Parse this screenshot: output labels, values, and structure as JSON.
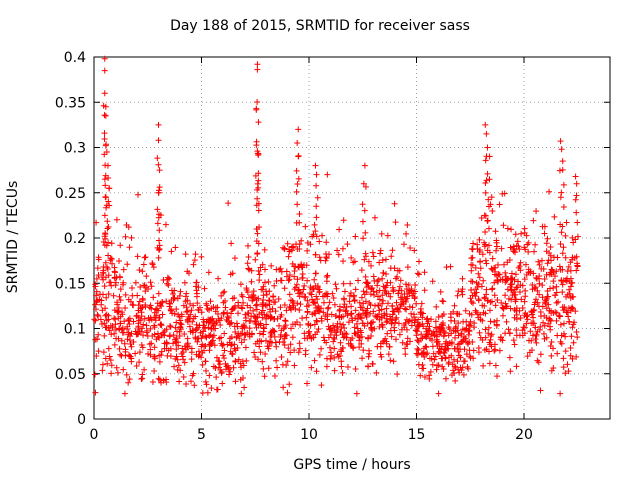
{
  "chart_data": {
    "type": "scatter",
    "title": "Day 188 of 2015, SRMTID for receiver sass",
    "xlabel": "GPS time / hours",
    "ylabel": "SRMTID / TECUs",
    "xlim": [
      0,
      24
    ],
    "ylim": [
      0,
      0.4
    ],
    "xticks": [
      0,
      5,
      10,
      15,
      20
    ],
    "xtick_labels": [
      "0",
      "5",
      "10",
      "15",
      "20"
    ],
    "yticks": [
      0,
      0.05,
      0.1,
      0.15,
      0.2,
      0.25,
      0.3,
      0.35,
      0.4
    ],
    "ytick_labels": [
      "0",
      "0.05",
      "0.1",
      "0.15",
      "0.2",
      "0.25",
      "0.3",
      "0.35",
      "0.4"
    ],
    "grid": true,
    "marker": "+",
    "color": "#ff0000",
    "x_range_hours": [
      0,
      22.5
    ],
    "peaks": [
      {
        "x": 0.5,
        "y": 0.398
      },
      {
        "x": 0.5,
        "y": 0.385
      },
      {
        "x": 0.5,
        "y": 0.36
      },
      {
        "x": 0.55,
        "y": 0.345
      },
      {
        "x": 0.55,
        "y": 0.335
      },
      {
        "x": 0.6,
        "y": 0.295
      },
      {
        "x": 0.65,
        "y": 0.28
      },
      {
        "x": 0.7,
        "y": 0.255
      },
      {
        "x": 3.0,
        "y": 0.325
      },
      {
        "x": 3.0,
        "y": 0.308
      },
      {
        "x": 3.05,
        "y": 0.275
      },
      {
        "x": 3.0,
        "y": 0.25
      },
      {
        "x": 7.6,
        "y": 0.392
      },
      {
        "x": 7.6,
        "y": 0.386
      },
      {
        "x": 7.55,
        "y": 0.343
      },
      {
        "x": 7.65,
        "y": 0.328
      },
      {
        "x": 7.6,
        "y": 0.296
      },
      {
        "x": 7.65,
        "y": 0.293
      },
      {
        "x": 9.5,
        "y": 0.32
      },
      {
        "x": 9.45,
        "y": 0.305
      },
      {
        "x": 9.5,
        "y": 0.29
      },
      {
        "x": 10.3,
        "y": 0.28
      },
      {
        "x": 10.35,
        "y": 0.27
      },
      {
        "x": 12.6,
        "y": 0.28
      },
      {
        "x": 12.55,
        "y": 0.26
      },
      {
        "x": 18.2,
        "y": 0.325
      },
      {
        "x": 18.25,
        "y": 0.315
      },
      {
        "x": 18.3,
        "y": 0.3
      },
      {
        "x": 18.4,
        "y": 0.29
      },
      {
        "x": 21.7,
        "y": 0.307
      },
      {
        "x": 21.75,
        "y": 0.298
      },
      {
        "x": 21.8,
        "y": 0.285
      },
      {
        "x": 22.4,
        "y": 0.268
      },
      {
        "x": 22.45,
        "y": 0.26
      }
    ],
    "series_profile": [
      {
        "x0": 0.0,
        "x1": 1.0,
        "center": 0.12,
        "spread": 0.04
      },
      {
        "x0": 1.0,
        "x1": 3.0,
        "center": 0.11,
        "spread": 0.04
      },
      {
        "x0": 3.0,
        "x1": 5.0,
        "center": 0.1,
        "spread": 0.035
      },
      {
        "x0": 5.0,
        "x1": 7.0,
        "center": 0.09,
        "spread": 0.035
      },
      {
        "x0": 7.0,
        "x1": 9.0,
        "center": 0.11,
        "spread": 0.04
      },
      {
        "x0": 9.0,
        "x1": 11.0,
        "center": 0.13,
        "spread": 0.045
      },
      {
        "x0": 11.0,
        "x1": 13.0,
        "center": 0.11,
        "spread": 0.035
      },
      {
        "x0": 13.0,
        "x1": 15.0,
        "center": 0.12,
        "spread": 0.035
      },
      {
        "x0": 15.0,
        "x1": 17.5,
        "center": 0.085,
        "spread": 0.025
      },
      {
        "x0": 17.5,
        "x1": 20.0,
        "center": 0.14,
        "spread": 0.05
      },
      {
        "x0": 20.0,
        "x1": 22.5,
        "center": 0.13,
        "spread": 0.05
      }
    ]
  }
}
